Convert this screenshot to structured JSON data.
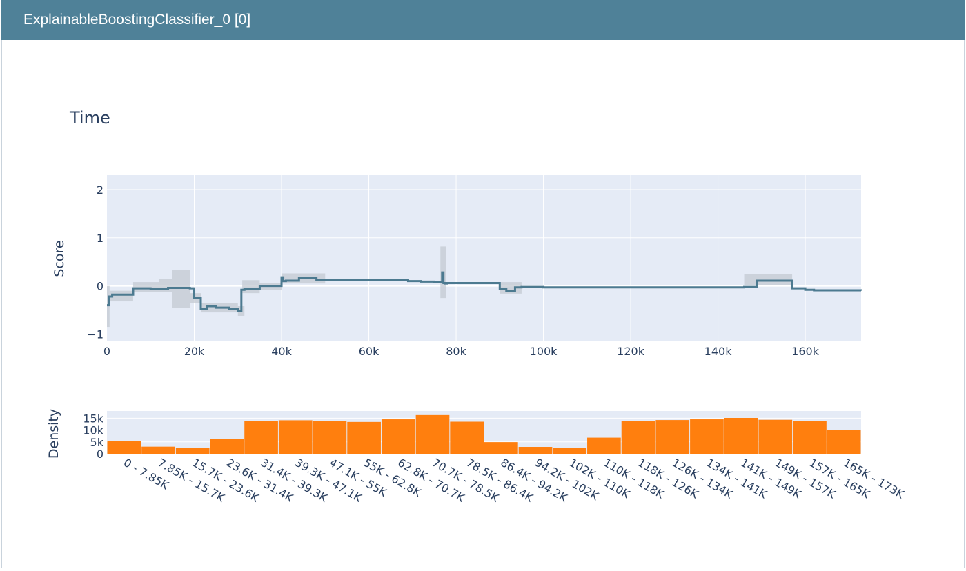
{
  "header": {
    "title": "ExplainableBoostingClassifier_0 [0]"
  },
  "colors": {
    "header_bg": "#4f8198",
    "plot_bg": "#e5ebf6",
    "line": "#4c7a90",
    "band": "#c3c9d2",
    "bar": "#ff7f0e",
    "text": "#2a3f5f"
  },
  "chart_data": [
    {
      "type": "line",
      "title": "Time",
      "xlabel": "",
      "ylabel": "Score",
      "xlim": [
        0,
        172792
      ],
      "ylim": [
        -1.15,
        2.3
      ],
      "x_ticks": [
        0,
        20000,
        40000,
        60000,
        80000,
        100000,
        120000,
        140000,
        160000
      ],
      "x_tick_labels": [
        "0",
        "20k",
        "40k",
        "60k",
        "80k",
        "100k",
        "120k",
        "140k",
        "160k"
      ],
      "y_ticks": [
        -1,
        0,
        1,
        2
      ],
      "y_tick_labels": [
        "−1",
        "0",
        "1",
        "2"
      ],
      "grid": true,
      "step": true,
      "series": [
        {
          "x": [
            0,
            400,
            1200,
            6000,
            10000,
            14000,
            19000,
            20000,
            21500,
            23000,
            25000,
            28000,
            30000,
            30800,
            31500,
            35000,
            40000,
            40400,
            41000,
            44000,
            48000,
            50000,
            55000,
            62000,
            69000,
            72000,
            75000,
            76800,
            77100,
            77400,
            78000,
            90000,
            91500,
            93500,
            95000,
            100000,
            105000,
            120000,
            140000,
            146000,
            149000,
            157000,
            160000,
            162000,
            172792
          ],
          "y": [
            -0.4,
            -0.22,
            -0.18,
            -0.05,
            -0.06,
            -0.04,
            -0.05,
            -0.25,
            -0.48,
            -0.42,
            -0.45,
            -0.47,
            -0.52,
            -0.08,
            -0.06,
            0.0,
            0.18,
            0.1,
            0.11,
            0.16,
            0.13,
            0.12,
            0.12,
            0.12,
            0.1,
            0.09,
            0.08,
            0.28,
            0.06,
            0.05,
            0.06,
            -0.06,
            -0.1,
            -0.03,
            -0.02,
            -0.03,
            -0.03,
            -0.03,
            -0.03,
            -0.02,
            0.11,
            -0.05,
            -0.08,
            -0.09,
            -0.1
          ]
        }
      ],
      "bands": [
        {
          "x0": 0,
          "x1": 600,
          "y0": -0.85,
          "y1": 0.0
        },
        {
          "x0": 600,
          "x1": 6000,
          "y0": -0.32,
          "y1": -0.1
        },
        {
          "x0": 6000,
          "x1": 12000,
          "y0": -0.12,
          "y1": 0.08
        },
        {
          "x0": 12000,
          "x1": 15000,
          "y0": -0.12,
          "y1": 0.15
        },
        {
          "x0": 15000,
          "x1": 19000,
          "y0": -0.45,
          "y1": 0.33
        },
        {
          "x0": 19000,
          "x1": 21500,
          "y0": -0.35,
          "y1": -0.15
        },
        {
          "x0": 21500,
          "x1": 30000,
          "y0": -0.55,
          "y1": -0.35
        },
        {
          "x0": 30000,
          "x1": 31500,
          "y0": -0.62,
          "y1": -0.42
        },
        {
          "x0": 31000,
          "x1": 35000,
          "y0": -0.15,
          "y1": 0.12
        },
        {
          "x0": 35000,
          "x1": 40000,
          "y0": -0.08,
          "y1": 0.06
        },
        {
          "x0": 40000,
          "x1": 50000,
          "y0": 0.05,
          "y1": 0.26
        },
        {
          "x0": 76400,
          "x1": 77700,
          "y0": -0.25,
          "y1": 0.82
        },
        {
          "x0": 90000,
          "x1": 95000,
          "y0": -0.16,
          "y1": 0.08
        },
        {
          "x0": 146000,
          "x1": 157000,
          "y0": 0.02,
          "y1": 0.25
        }
      ]
    },
    {
      "type": "bar",
      "title": "",
      "xlabel": "",
      "ylabel": "Density",
      "ylim": [
        0,
        18000
      ],
      "y_ticks": [
        0,
        5000,
        10000,
        15000
      ],
      "y_tick_labels": [
        "0",
        "5k",
        "10k",
        "15k"
      ],
      "categories": [
        "0 - 7.85K",
        "7.85K - 15.7K",
        "15.7K - 23.6K",
        "23.6K - 31.4K",
        "31.4K - 39.3K",
        "39.3K - 47.1K",
        "47.1K - 55K",
        "55K - 62.8K",
        "62.8K - 70.7K",
        "70.7K - 78.5K",
        "78.5K - 86.4K",
        "86.4K - 94.2K",
        "94.2K - 102K",
        "102K - 110K",
        "110K - 118K",
        "118K - 126K",
        "126K - 134K",
        "134K - 141K",
        "141K - 149K",
        "149K - 157K",
        "157K - 165K",
        "165K - 173K"
      ],
      "values": [
        5300,
        3000,
        2400,
        6300,
        13700,
        14100,
        13900,
        13400,
        14500,
        16300,
        13500,
        4900,
        2900,
        2400,
        6800,
        13700,
        14200,
        14500,
        15100,
        14300,
        13800,
        10000
      ]
    }
  ]
}
